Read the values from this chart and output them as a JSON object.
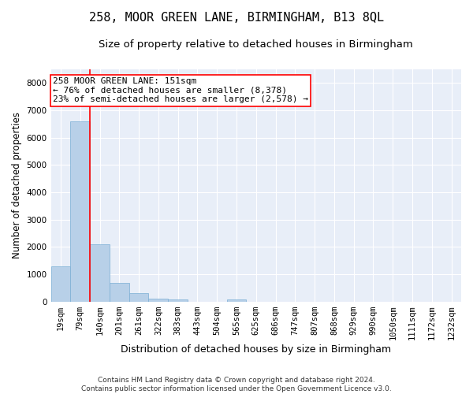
{
  "title": "258, MOOR GREEN LANE, BIRMINGHAM, B13 8QL",
  "subtitle": "Size of property relative to detached houses in Birmingham",
  "xlabel": "Distribution of detached houses by size in Birmingham",
  "ylabel": "Number of detached properties",
  "categories": [
    "19sqm",
    "79sqm",
    "140sqm",
    "201sqm",
    "261sqm",
    "322sqm",
    "383sqm",
    "443sqm",
    "504sqm",
    "565sqm",
    "625sqm",
    "686sqm",
    "747sqm",
    "807sqm",
    "868sqm",
    "929sqm",
    "990sqm",
    "1050sqm",
    "1111sqm",
    "1172sqm",
    "1232sqm"
  ],
  "values": [
    1300,
    6600,
    2100,
    700,
    300,
    120,
    70,
    0,
    0,
    80,
    0,
    0,
    0,
    0,
    0,
    0,
    0,
    0,
    0,
    0,
    0
  ],
  "bar_color": "#b8d0e8",
  "bar_edge_color": "#7aaed4",
  "vline_x_index": 2,
  "vline_color": "red",
  "annotation_text": "258 MOOR GREEN LANE: 151sqm\n← 76% of detached houses are smaller (8,378)\n23% of semi-detached houses are larger (2,578) →",
  "annotation_boxcolor": "white",
  "annotation_edgecolor": "red",
  "ylim": [
    0,
    8500
  ],
  "yticks": [
    0,
    1000,
    2000,
    3000,
    4000,
    5000,
    6000,
    7000,
    8000
  ],
  "background_color": "#e8eef8",
  "grid_color": "white",
  "footnote": "Contains HM Land Registry data © Crown copyright and database right 2024.\nContains public sector information licensed under the Open Government Licence v3.0.",
  "title_fontsize": 11,
  "subtitle_fontsize": 9.5,
  "xlabel_fontsize": 9,
  "ylabel_fontsize": 8.5,
  "tick_fontsize": 7.5,
  "annot_fontsize": 8,
  "footnote_fontsize": 6.5
}
